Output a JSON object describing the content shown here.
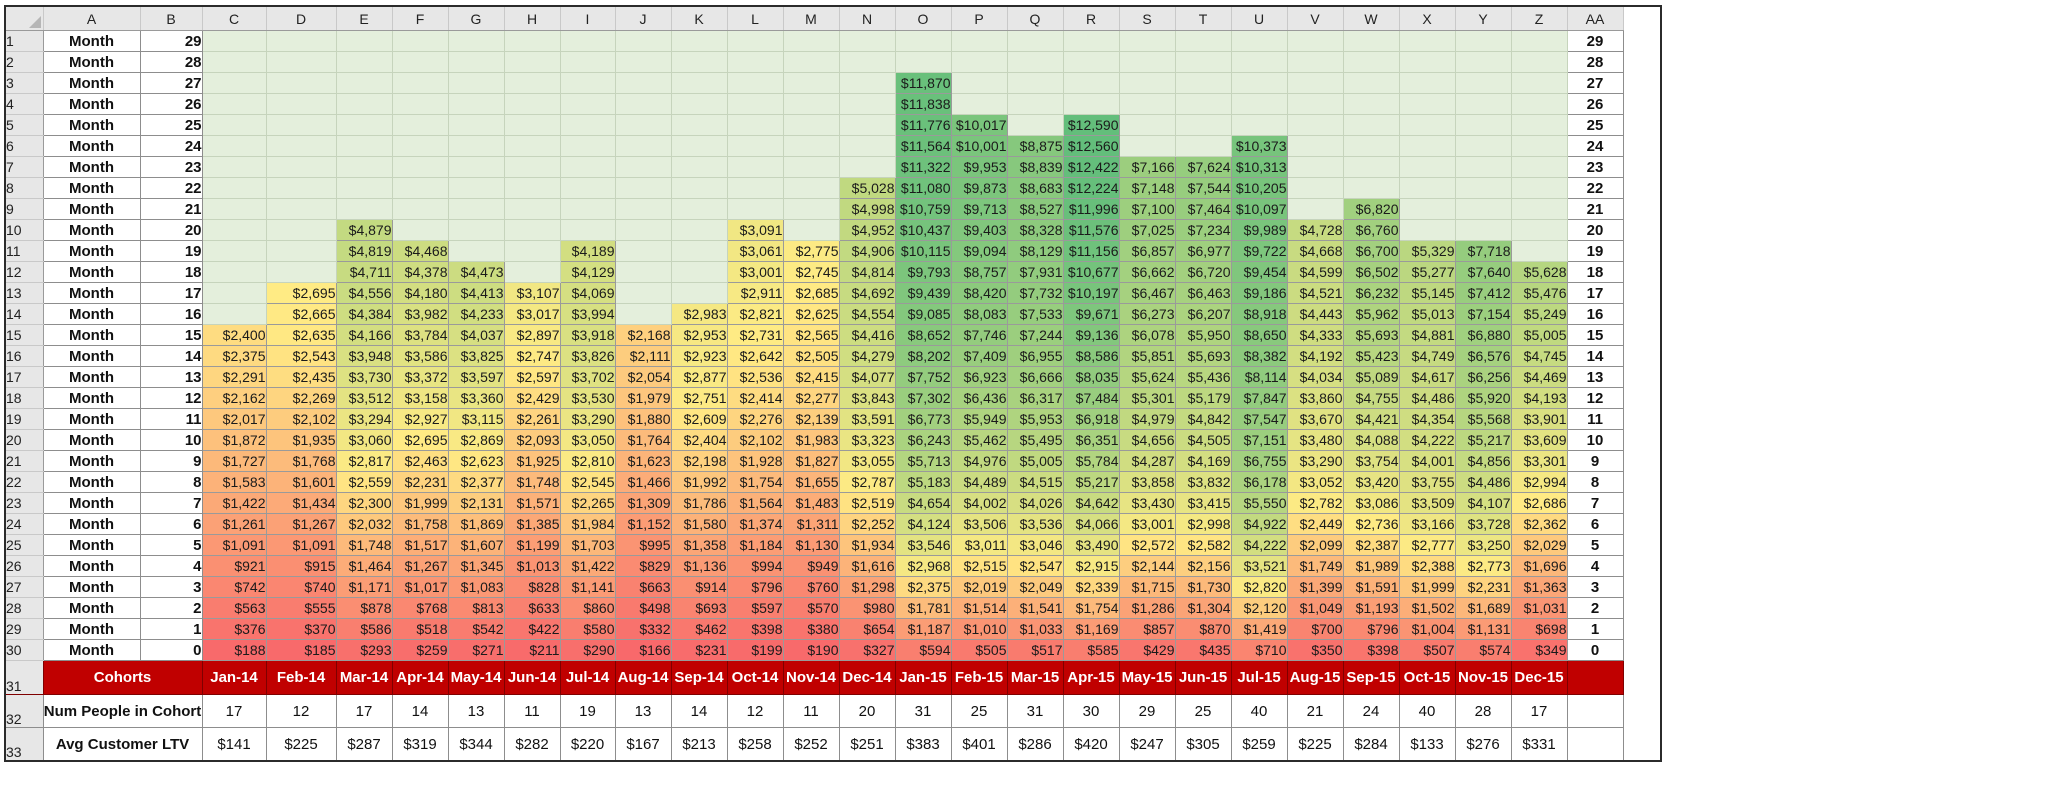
{
  "columns": [
    "A",
    "B",
    "C",
    "D",
    "E",
    "F",
    "G",
    "H",
    "I",
    "J",
    "K",
    "L",
    "M",
    "N",
    "O",
    "P",
    "Q",
    "R",
    "S",
    "T",
    "U",
    "V",
    "W",
    "X",
    "Y",
    "Z",
    "AA"
  ],
  "cohorts": [
    "Jan-14",
    "Feb-14",
    "Mar-14",
    "Apr-14",
    "May-14",
    "Jun-14",
    "Jul-14",
    "Aug-14",
    "Sep-14",
    "Oct-14",
    "Nov-14",
    "Dec-14",
    "Jan-15",
    "Feb-15",
    "Mar-15",
    "Apr-15",
    "May-15",
    "Jun-15",
    "Jul-15",
    "Aug-15",
    "Sep-15",
    "Oct-15",
    "Nov-15",
    "Dec-15"
  ],
  "labels": {
    "month": "Month",
    "cohorts": "Cohorts",
    "num_people": "Num People in Cohort",
    "avg_ltv": "Avg Customer LTV"
  },
  "num_people": [
    "17",
    "12",
    "17",
    "14",
    "13",
    "11",
    "19",
    "13",
    "14",
    "12",
    "11",
    "20",
    "31",
    "25",
    "31",
    "30",
    "29",
    "25",
    "40",
    "21",
    "24",
    "40",
    "28",
    "17"
  ],
  "avg_ltv": [
    "$141",
    "$225",
    "$287",
    "$319",
    "$344",
    "$282",
    "$220",
    "$167",
    "$213",
    "$258",
    "$252",
    "$251",
    "$383",
    "$401",
    "$286",
    "$420",
    "$247",
    "$305",
    "$259",
    "$225",
    "$284",
    "$133",
    "$276",
    "$331"
  ],
  "rows": [
    {
      "rn": "1",
      "month": "29",
      "vals": [
        null,
        null,
        null,
        null,
        null,
        null,
        null,
        null,
        null,
        null,
        null,
        null,
        null,
        null,
        null,
        null,
        null,
        null,
        null,
        null,
        null,
        null,
        null,
        null
      ]
    },
    {
      "rn": "2",
      "month": "28",
      "vals": [
        null,
        null,
        null,
        null,
        null,
        null,
        null,
        null,
        null,
        null,
        null,
        null,
        null,
        null,
        null,
        null,
        null,
        null,
        null,
        null,
        null,
        null,
        null,
        null
      ]
    },
    {
      "rn": "3",
      "month": "27",
      "vals": [
        null,
        null,
        null,
        null,
        null,
        null,
        null,
        null,
        null,
        null,
        null,
        null,
        "$11,870",
        null,
        null,
        null,
        null,
        null,
        null,
        null,
        null,
        null,
        null,
        null
      ]
    },
    {
      "rn": "4",
      "month": "26",
      "vals": [
        null,
        null,
        null,
        null,
        null,
        null,
        null,
        null,
        null,
        null,
        null,
        null,
        "$11,838",
        null,
        null,
        null,
        null,
        null,
        null,
        null,
        null,
        null,
        null,
        null
      ]
    },
    {
      "rn": "5",
      "month": "25",
      "vals": [
        null,
        null,
        null,
        null,
        null,
        null,
        null,
        null,
        null,
        null,
        null,
        null,
        "$11,776",
        "$10,017",
        null,
        "$12,590",
        null,
        null,
        null,
        null,
        null,
        null,
        null,
        null
      ]
    },
    {
      "rn": "6",
      "month": "24",
      "vals": [
        null,
        null,
        null,
        null,
        null,
        null,
        null,
        null,
        null,
        null,
        null,
        null,
        "$11,564",
        "$10,001",
        "$8,875",
        "$12,560",
        null,
        null,
        "$10,373",
        null,
        null,
        null,
        null,
        null
      ]
    },
    {
      "rn": "7",
      "month": "23",
      "vals": [
        null,
        null,
        null,
        null,
        null,
        null,
        null,
        null,
        null,
        null,
        null,
        null,
        "$11,322",
        "$9,953",
        "$8,839",
        "$12,422",
        "$7,166",
        "$7,624",
        "$10,313",
        null,
        null,
        null,
        null,
        null
      ]
    },
    {
      "rn": "8",
      "month": "22",
      "vals": [
        null,
        null,
        null,
        null,
        null,
        null,
        null,
        null,
        null,
        null,
        null,
        "$5,028",
        "$11,080",
        "$9,873",
        "$8,683",
        "$12,224",
        "$7,148",
        "$7,544",
        "$10,205",
        null,
        null,
        null,
        null,
        null
      ]
    },
    {
      "rn": "9",
      "month": "21",
      "vals": [
        null,
        null,
        null,
        null,
        null,
        null,
        null,
        null,
        null,
        null,
        null,
        "$4,998",
        "$10,759",
        "$9,713",
        "$8,527",
        "$11,996",
        "$7,100",
        "$7,464",
        "$10,097",
        null,
        "$6,820",
        null,
        null,
        null
      ]
    },
    {
      "rn": "10",
      "month": "20",
      "vals": [
        null,
        null,
        "$4,879",
        null,
        null,
        null,
        null,
        null,
        null,
        "$3,091",
        null,
        "$4,952",
        "$10,437",
        "$9,403",
        "$8,328",
        "$11,576",
        "$7,025",
        "$7,234",
        "$9,989",
        "$4,728",
        "$6,760",
        null,
        null,
        null
      ]
    },
    {
      "rn": "11",
      "month": "19",
      "vals": [
        null,
        null,
        "$4,819",
        "$4,468",
        null,
        null,
        "$4,189",
        null,
        null,
        "$3,061",
        "$2,775",
        "$4,906",
        "$10,115",
        "$9,094",
        "$8,129",
        "$11,156",
        "$6,857",
        "$6,977",
        "$9,722",
        "$4,668",
        "$6,700",
        "$5,329",
        "$7,718",
        null
      ]
    },
    {
      "rn": "12",
      "month": "18",
      "vals": [
        null,
        null,
        "$4,711",
        "$4,378",
        "$4,473",
        null,
        "$4,129",
        null,
        null,
        "$3,001",
        "$2,745",
        "$4,814",
        "$9,793",
        "$8,757",
        "$7,931",
        "$10,677",
        "$6,662",
        "$6,720",
        "$9,454",
        "$4,599",
        "$6,502",
        "$5,277",
        "$7,640",
        "$5,628"
      ]
    },
    {
      "rn": "13",
      "month": "17",
      "vals": [
        null,
        "$2,695",
        "$4,556",
        "$4,180",
        "$4,413",
        "$3,107",
        "$4,069",
        null,
        null,
        "$2,911",
        "$2,685",
        "$4,692",
        "$9,439",
        "$8,420",
        "$7,732",
        "$10,197",
        "$6,467",
        "$6,463",
        "$9,186",
        "$4,521",
        "$6,232",
        "$5,145",
        "$7,412",
        "$5,476"
      ]
    },
    {
      "rn": "14",
      "month": "16",
      "vals": [
        null,
        "$2,665",
        "$4,384",
        "$3,982",
        "$4,233",
        "$3,017",
        "$3,994",
        null,
        "$2,983",
        "$2,821",
        "$2,625",
        "$4,554",
        "$9,085",
        "$8,083",
        "$7,533",
        "$9,671",
        "$6,273",
        "$6,207",
        "$8,918",
        "$4,443",
        "$5,962",
        "$5,013",
        "$7,154",
        "$5,249"
      ]
    },
    {
      "rn": "15",
      "month": "15",
      "vals": [
        "$2,400",
        "$2,635",
        "$4,166",
        "$3,784",
        "$4,037",
        "$2,897",
        "$3,918",
        "$2,168",
        "$2,953",
        "$2,731",
        "$2,565",
        "$4,416",
        "$8,652",
        "$7,746",
        "$7,244",
        "$9,136",
        "$6,078",
        "$5,950",
        "$8,650",
        "$4,333",
        "$5,693",
        "$4,881",
        "$6,880",
        "$5,005"
      ]
    },
    {
      "rn": "16",
      "month": "14",
      "vals": [
        "$2,375",
        "$2,543",
        "$3,948",
        "$3,586",
        "$3,825",
        "$2,747",
        "$3,826",
        "$2,111",
        "$2,923",
        "$2,642",
        "$2,505",
        "$4,279",
        "$8,202",
        "$7,409",
        "$6,955",
        "$8,586",
        "$5,851",
        "$5,693",
        "$8,382",
        "$4,192",
        "$5,423",
        "$4,749",
        "$6,576",
        "$4,745"
      ]
    },
    {
      "rn": "17",
      "month": "13",
      "vals": [
        "$2,291",
        "$2,435",
        "$3,730",
        "$3,372",
        "$3,597",
        "$2,597",
        "$3,702",
        "$2,054",
        "$2,877",
        "$2,536",
        "$2,415",
        "$4,077",
        "$7,752",
        "$6,923",
        "$6,666",
        "$8,035",
        "$5,624",
        "$5,436",
        "$8,114",
        "$4,034",
        "$5,089",
        "$4,617",
        "$6,256",
        "$4,469"
      ]
    },
    {
      "rn": "18",
      "month": "12",
      "vals": [
        "$2,162",
        "$2,269",
        "$3,512",
        "$3,158",
        "$3,360",
        "$2,429",
        "$3,530",
        "$1,979",
        "$2,751",
        "$2,414",
        "$2,277",
        "$3,843",
        "$7,302",
        "$6,436",
        "$6,317",
        "$7,484",
        "$5,301",
        "$5,179",
        "$7,847",
        "$3,860",
        "$4,755",
        "$4,486",
        "$5,920",
        "$4,193"
      ]
    },
    {
      "rn": "19",
      "month": "11",
      "vals": [
        "$2,017",
        "$2,102",
        "$3,294",
        "$2,927",
        "$3,115",
        "$2,261",
        "$3,290",
        "$1,880",
        "$2,609",
        "$2,276",
        "$2,139",
        "$3,591",
        "$6,773",
        "$5,949",
        "$5,953",
        "$6,918",
        "$4,979",
        "$4,842",
        "$7,547",
        "$3,670",
        "$4,421",
        "$4,354",
        "$5,568",
        "$3,901"
      ]
    },
    {
      "rn": "20",
      "month": "10",
      "vals": [
        "$1,872",
        "$1,935",
        "$3,060",
        "$2,695",
        "$2,869",
        "$2,093",
        "$3,050",
        "$1,764",
        "$2,404",
        "$2,102",
        "$1,983",
        "$3,323",
        "$6,243",
        "$5,462",
        "$5,495",
        "$6,351",
        "$4,656",
        "$4,505",
        "$7,151",
        "$3,480",
        "$4,088",
        "$4,222",
        "$5,217",
        "$3,609"
      ]
    },
    {
      "rn": "21",
      "month": "9",
      "vals": [
        "$1,727",
        "$1,768",
        "$2,817",
        "$2,463",
        "$2,623",
        "$1,925",
        "$2,810",
        "$1,623",
        "$2,198",
        "$1,928",
        "$1,827",
        "$3,055",
        "$5,713",
        "$4,976",
        "$5,005",
        "$5,784",
        "$4,287",
        "$4,169",
        "$6,755",
        "$3,290",
        "$3,754",
        "$4,001",
        "$4,856",
        "$3,301"
      ]
    },
    {
      "rn": "22",
      "month": "8",
      "vals": [
        "$1,583",
        "$1,601",
        "$2,559",
        "$2,231",
        "$2,377",
        "$1,748",
        "$2,545",
        "$1,466",
        "$1,992",
        "$1,754",
        "$1,655",
        "$2,787",
        "$5,183",
        "$4,489",
        "$4,515",
        "$5,217",
        "$3,858",
        "$3,832",
        "$6,178",
        "$3,052",
        "$3,420",
        "$3,755",
        "$4,486",
        "$2,994"
      ]
    },
    {
      "rn": "23",
      "month": "7",
      "vals": [
        "$1,422",
        "$1,434",
        "$2,300",
        "$1,999",
        "$2,131",
        "$1,571",
        "$2,265",
        "$1,309",
        "$1,786",
        "$1,564",
        "$1,483",
        "$2,519",
        "$4,654",
        "$4,002",
        "$4,026",
        "$4,642",
        "$3,430",
        "$3,415",
        "$5,550",
        "$2,782",
        "$3,086",
        "$3,509",
        "$4,107",
        "$2,686"
      ]
    },
    {
      "rn": "24",
      "month": "6",
      "vals": [
        "$1,261",
        "$1,267",
        "$2,032",
        "$1,758",
        "$1,869",
        "$1,385",
        "$1,984",
        "$1,152",
        "$1,580",
        "$1,374",
        "$1,311",
        "$2,252",
        "$4,124",
        "$3,506",
        "$3,536",
        "$4,066",
        "$3,001",
        "$2,998",
        "$4,922",
        "$2,449",
        "$2,736",
        "$3,166",
        "$3,728",
        "$2,362"
      ]
    },
    {
      "rn": "25",
      "month": "5",
      "vals": [
        "$1,091",
        "$1,091",
        "$1,748",
        "$1,517",
        "$1,607",
        "$1,199",
        "$1,703",
        "$995",
        "$1,358",
        "$1,184",
        "$1,130",
        "$1,934",
        "$3,546",
        "$3,011",
        "$3,046",
        "$3,490",
        "$2,572",
        "$2,582",
        "$4,222",
        "$2,099",
        "$2,387",
        "$2,777",
        "$3,250",
        "$2,029"
      ]
    },
    {
      "rn": "26",
      "month": "4",
      "vals": [
        "$921",
        "$915",
        "$1,464",
        "$1,267",
        "$1,345",
        "$1,013",
        "$1,422",
        "$829",
        "$1,136",
        "$994",
        "$949",
        "$1,616",
        "$2,968",
        "$2,515",
        "$2,547",
        "$2,915",
        "$2,144",
        "$2,156",
        "$3,521",
        "$1,749",
        "$1,989",
        "$2,388",
        "$2,773",
        "$1,696"
      ]
    },
    {
      "rn": "27",
      "month": "3",
      "vals": [
        "$742",
        "$740",
        "$1,171",
        "$1,017",
        "$1,083",
        "$828",
        "$1,141",
        "$663",
        "$914",
        "$796",
        "$760",
        "$1,298",
        "$2,375",
        "$2,019",
        "$2,049",
        "$2,339",
        "$1,715",
        "$1,730",
        "$2,820",
        "$1,399",
        "$1,591",
        "$1,999",
        "$2,231",
        "$1,363"
      ]
    },
    {
      "rn": "28",
      "month": "2",
      "vals": [
        "$563",
        "$555",
        "$878",
        "$768",
        "$813",
        "$633",
        "$860",
        "$498",
        "$693",
        "$597",
        "$570",
        "$980",
        "$1,781",
        "$1,514",
        "$1,541",
        "$1,754",
        "$1,286",
        "$1,304",
        "$2,120",
        "$1,049",
        "$1,193",
        "$1,502",
        "$1,689",
        "$1,031"
      ]
    },
    {
      "rn": "29",
      "month": "1",
      "vals": [
        "$376",
        "$370",
        "$586",
        "$518",
        "$542",
        "$422",
        "$580",
        "$332",
        "$462",
        "$398",
        "$380",
        "$654",
        "$1,187",
        "$1,010",
        "$1,033",
        "$1,169",
        "$857",
        "$870",
        "$1,419",
        "$700",
        "$796",
        "$1,004",
        "$1,131",
        "$698"
      ]
    },
    {
      "rn": "30",
      "month": "0",
      "vals": [
        "$188",
        "$185",
        "$293",
        "$259",
        "$271",
        "$211",
        "$290",
        "$166",
        "$231",
        "$199",
        "$190",
        "$327",
        "$594",
        "$505",
        "$517",
        "$585",
        "$429",
        "$435",
        "$710",
        "$350",
        "$398",
        "$507",
        "$574",
        "$349"
      ]
    }
  ],
  "footer_row_numbers": [
    "31",
    "32",
    "33"
  ],
  "colors": {
    "low": "#f8696b",
    "mid": "#ffeb84",
    "high": "#63be7b",
    "empty": "#e4efdc",
    "cohort_band": "#c00000"
  }
}
